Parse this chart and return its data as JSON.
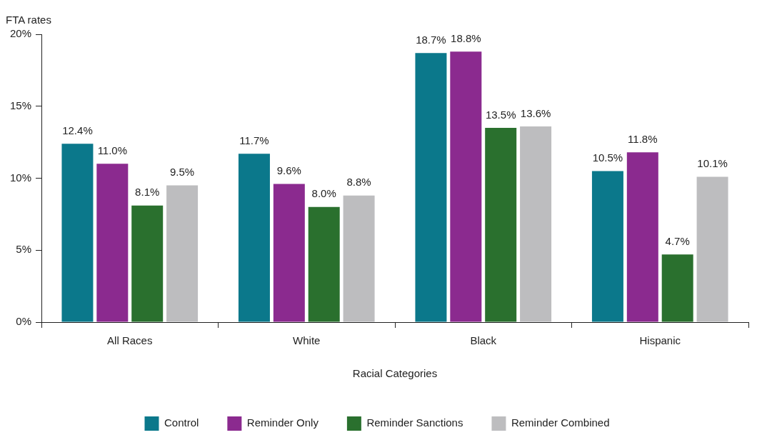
{
  "chart_data": {
    "type": "bar",
    "ylabel": "FTA rates",
    "xlabel": "Racial Categories",
    "categories": [
      "All Races",
      "White",
      "Black",
      "Hispanic"
    ],
    "series": [
      {
        "name": "Control",
        "color": "#0b788b",
        "values": [
          12.4,
          11.7,
          18.7,
          10.5
        ],
        "value_labels": [
          "12.4%",
          "11.7%",
          "18.7%",
          "10.5%"
        ]
      },
      {
        "name": "Reminder Only",
        "color": "#8b2a8f",
        "values": [
          11.0,
          9.6,
          18.8,
          11.8
        ],
        "value_labels": [
          "11.0%",
          "9.6%",
          "18.8%",
          "11.8%"
        ]
      },
      {
        "name": "Reminder Sanctions",
        "color": "#2a702e",
        "values": [
          8.1,
          8.0,
          13.5,
          4.7
        ],
        "value_labels": [
          "8.1%",
          "8.0%",
          "13.5%",
          "4.7%"
        ]
      },
      {
        "name": "Reminder Combined",
        "color": "#bdbdbf",
        "values": [
          9.5,
          8.8,
          13.6,
          10.1
        ],
        "value_labels": [
          "9.5%",
          "8.8%",
          "13.6%",
          "10.1%"
        ]
      }
    ],
    "ylim": [
      0,
      20
    ],
    "yticks": [
      {
        "value": 0,
        "label": "0%"
      },
      {
        "value": 5,
        "label": "5%"
      },
      {
        "value": 10,
        "label": "10%"
      },
      {
        "value": 15,
        "label": "15%"
      },
      {
        "value": 20,
        "label": "20%"
      }
    ],
    "grid": false,
    "legend": "bottom"
  }
}
